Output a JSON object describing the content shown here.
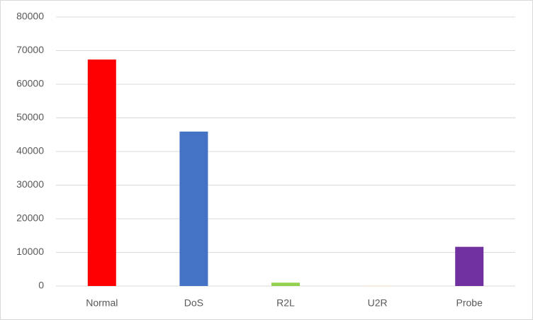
{
  "chart_data": {
    "type": "bar",
    "categories": [
      "Normal",
      "DoS",
      "R2L",
      "U2R",
      "Probe"
    ],
    "values": [
      67343,
      45927,
      995,
      52,
      11656
    ],
    "colors": [
      "#ff0000",
      "#4472c4",
      "#92d050",
      "#ffd966",
      "#7030a0"
    ],
    "ylim": [
      0,
      80000
    ],
    "yticks": [
      0,
      10000,
      20000,
      30000,
      40000,
      50000,
      60000,
      70000,
      80000
    ],
    "grid": true
  }
}
